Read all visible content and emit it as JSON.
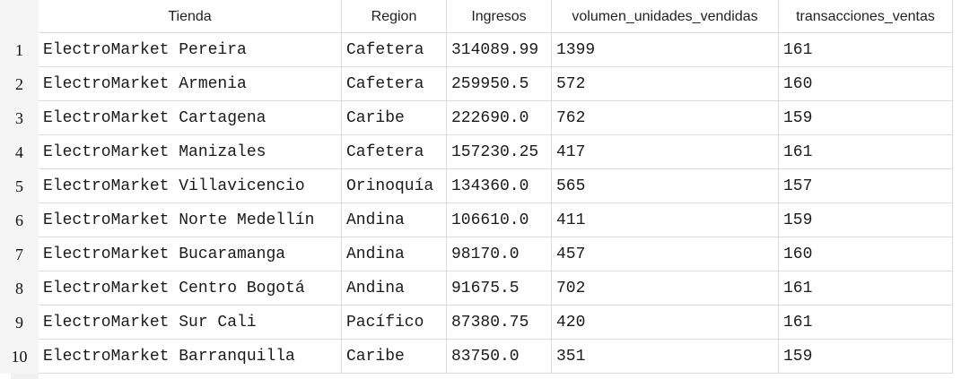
{
  "table": {
    "columns": [
      "Tienda",
      "Region",
      "Ingresos",
      "volumen_unidades_vendidas",
      "transacciones_ventas"
    ],
    "rows": [
      {
        "num": "1",
        "cells": [
          "ElectroMarket Pereira",
          "Cafetera",
          "314089.99",
          "1399",
          "161"
        ]
      },
      {
        "num": "2",
        "cells": [
          "ElectroMarket Armenia",
          "Cafetera",
          "259950.5",
          "572",
          "160"
        ]
      },
      {
        "num": "3",
        "cells": [
          "ElectroMarket Cartagena",
          "Caribe",
          "222690.0",
          "762",
          "159"
        ]
      },
      {
        "num": "4",
        "cells": [
          "ElectroMarket Manizales",
          "Cafetera",
          "157230.25",
          "417",
          "161"
        ]
      },
      {
        "num": "5",
        "cells": [
          "ElectroMarket Villavicencio",
          "Orinoquía",
          "134360.0",
          "565",
          "157"
        ]
      },
      {
        "num": "6",
        "cells": [
          "ElectroMarket Norte Medellín",
          "Andina",
          "106610.0",
          "411",
          "159"
        ]
      },
      {
        "num": "7",
        "cells": [
          "ElectroMarket Bucaramanga",
          "Andina",
          "98170.0",
          "457",
          "160"
        ]
      },
      {
        "num": "8",
        "cells": [
          "ElectroMarket Centro Bogotá",
          "Andina",
          "91675.5",
          "702",
          "161"
        ]
      },
      {
        "num": "9",
        "cells": [
          "ElectroMarket Sur Cali",
          "Pacífico",
          "87380.75",
          "420",
          "161"
        ]
      },
      {
        "num": "10",
        "cells": [
          "ElectroMarket Barranquilla",
          "Caribe",
          "83750.0",
          "351",
          "159"
        ]
      }
    ]
  }
}
